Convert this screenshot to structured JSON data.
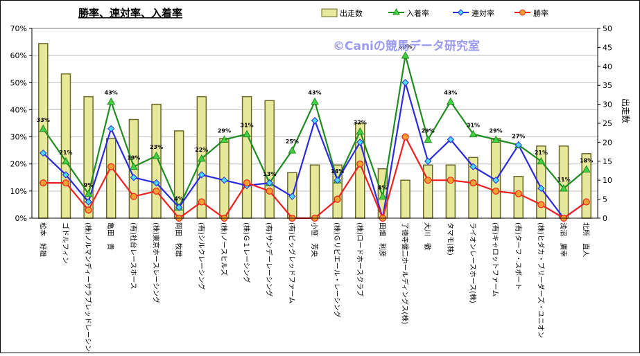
{
  "chart_data": {
    "type": "bar+line",
    "title": "勝率、連対率、入着率",
    "watermark": "©Caniの競馬データ研究室",
    "y2label": "出走数",
    "y_left_ticks": [
      "0%",
      "10%",
      "20%",
      "30%",
      "40%",
      "50%",
      "60%",
      "70%"
    ],
    "y_right_ticks": [
      "0",
      "5",
      "10",
      "15",
      "20",
      "25",
      "30",
      "35",
      "40",
      "45",
      "50"
    ],
    "ylim_left": [
      0,
      70
    ],
    "ylim_right": [
      0,
      50
    ],
    "legend": [
      "出走数",
      "入着率",
      "連対率",
      "勝率"
    ],
    "categories": [
      "松本　好雄",
      "ゴドルフィン",
      "(株)ノルマンディーサラブレッドレーシング",
      "亀田　貴",
      "(有)社台レースホース",
      "(株)東京ホースレーシング",
      "岡田　牧雄",
      "(有)シルクレーシング",
      "(株)ノースヒルズ",
      "(株)Ｇ１レーシング",
      "(有)サンデーレーシング",
      "(有)ビッグレッドファーム",
      "小笹　芳央",
      "(株)Ｇリビエール・レーシング",
      "(株)ロードホースクラブ",
      "田畑　利彦",
      "了徳寺健二ホールディングス(株)",
      "大川　徹",
      "タマモ(株)",
      "ライオンレースホース(株)",
      "(有)キャロットファーム",
      "(有)ターフ・スポート",
      "(株)ヒダカ・ブリーダーズ・ユニオン",
      "浅沼　廣幸",
      "北所　直人"
    ],
    "series": [
      {
        "name": "出走数",
        "axis": "right",
        "type": "bar",
        "values": [
          46,
          38,
          32,
          21,
          26,
          30,
          23,
          32,
          21,
          32,
          31,
          12,
          14,
          14,
          25,
          13,
          10,
          14,
          14,
          16,
          21,
          11,
          19,
          19,
          17
        ]
      },
      {
        "name": "入着率",
        "axis": "left",
        "type": "line",
        "values": [
          33,
          21,
          9,
          43,
          19,
          23,
          4,
          22,
          29,
          31,
          13,
          25,
          43,
          14,
          32,
          8,
          60,
          29,
          43,
          31,
          29,
          27,
          21,
          11,
          18
        ]
      },
      {
        "name": "連対率",
        "axis": "left",
        "type": "line",
        "values": [
          24,
          16,
          6,
          33,
          15,
          13,
          4,
          16,
          14,
          12,
          13,
          8,
          36,
          14,
          28,
          0,
          50,
          21,
          29,
          19,
          14,
          27,
          11,
          0,
          6
        ]
      },
      {
        "name": "勝率",
        "axis": "left",
        "type": "line",
        "values": [
          13,
          13,
          3,
          19,
          8,
          10,
          0,
          6,
          0,
          13,
          10,
          0,
          0,
          7,
          20,
          0,
          30,
          14,
          14,
          13,
          10,
          9,
          5,
          0,
          6
        ]
      }
    ],
    "data_labels": [
      "33%",
      "21%",
      "9%",
      "43%",
      "19%",
      "23%",
      "4%",
      "22%",
      "29%",
      "31%",
      "13%",
      "25%",
      "43%",
      "14%",
      "32%",
      "8%",
      "60%",
      "29%",
      "43%",
      "31%",
      "29%",
      "27%",
      "21%",
      "11%",
      "18%"
    ]
  },
  "colors": {
    "bar_fill": "#e8e89a",
    "bar_stroke": "#6a6a2a",
    "entry": "#1e8c1e",
    "entry_marker": "#44d044",
    "rentai": "#2a2ae0",
    "rentai_marker": "#4ad8ff",
    "win": "#ee2020",
    "win_marker": "#f0a030",
    "watermark": "#9a9aee"
  }
}
